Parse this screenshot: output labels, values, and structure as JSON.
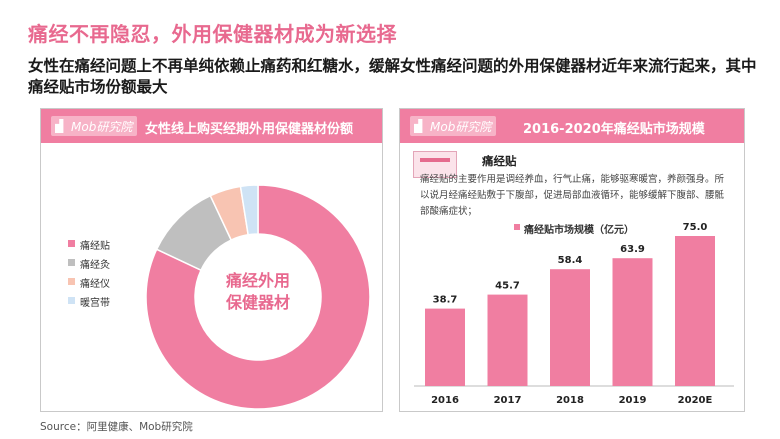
{
  "page": {
    "title": "痛经不再隐忍，外用保健器材成为新选择",
    "subtitle": "女性在痛经问题上不再单纯依赖止痛药和红糖水，缓解女性痛经问题的外用保健器材近年来流行起来，其中痛经贴市场份额最大",
    "source": "Source：阿里健康、Mob研究院"
  },
  "left_panel": {
    "logo": "Mob研究院",
    "title": "女性线上购买经期外用保健器材份额",
    "center_label_line1": "痛经外用",
    "center_label_line2": "保健器材"
  },
  "right_panel": {
    "logo": "Mob研究院",
    "title": "2016-2020年痛经贴市场规模",
    "product_name": "痛经贴",
    "product_desc": "痛经贴的主要作用是调经养血，行气止痛，能够驱寒暖宫，养颜强身。所以说月经痛经贴敷于下腹部，促进局部血液循环，能够缓解下腹部、腰骶部酸痛症状；",
    "legend_label": "痛经贴市场规模（亿元）"
  },
  "chart_data": [
    {
      "type": "pie",
      "title": "女性线上购买经期外用保健器材份额",
      "donut": true,
      "categories": [
        "痛经贴",
        "痛经灸",
        "痛经仪",
        "暖宫带"
      ],
      "values": [
        82,
        11,
        4.5,
        2.5
      ],
      "colors": [
        "#f07ea1",
        "#bfbfbf",
        "#f8c4b2",
        "#cfe3f5"
      ],
      "legend_position": "left"
    },
    {
      "type": "bar",
      "title": "2016-2020年痛经贴市场规模",
      "categories": [
        "2016",
        "2017",
        "2018",
        "2019",
        "2020E"
      ],
      "series": [
        {
          "name": "痛经贴市场规模（亿元）",
          "values": [
            38.7,
            45.7,
            58.4,
            63.9,
            75.0
          ]
        }
      ],
      "value_labels": [
        "38.7",
        "45.7",
        "58.4",
        "63.9",
        "75.0"
      ],
      "ylim": [
        0,
        75
      ],
      "color": "#f07ea1",
      "grid": false
    }
  ]
}
